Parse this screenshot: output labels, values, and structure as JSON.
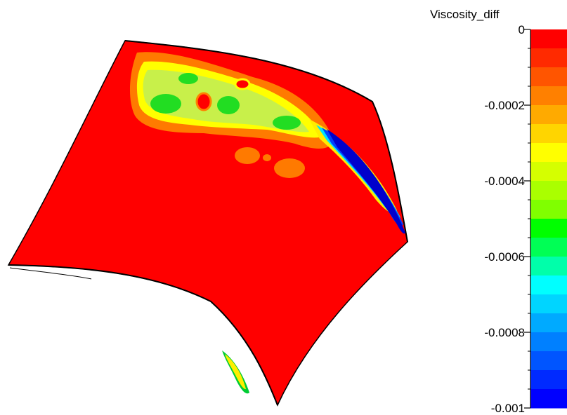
{
  "legend": {
    "title": "Viscosity_diff",
    "min": -0.001,
    "max": 0,
    "ticks": [
      {
        "value": 0,
        "label": "0"
      },
      {
        "value": -0.0002,
        "label": "-0.0002"
      },
      {
        "value": -0.0004,
        "label": "-0.0004"
      },
      {
        "value": -0.0006,
        "label": "-0.0006"
      },
      {
        "value": -0.0008,
        "label": "-0.0008"
      },
      {
        "value": -0.001,
        "label": "-0.001"
      }
    ],
    "bands": [
      "#ff0000",
      "#ff2a00",
      "#ff5500",
      "#ff8000",
      "#ffaa00",
      "#ffd500",
      "#ffff00",
      "#d5ff00",
      "#aaff00",
      "#80ff00",
      "#00ff00",
      "#00ff55",
      "#00ffaa",
      "#00ffff",
      "#00d5ff",
      "#00aaff",
      "#0080ff",
      "#0055ff",
      "#002aff",
      "#0000ff"
    ]
  },
  "colors": {
    "base": "#ff0000",
    "edge": "#000000"
  }
}
